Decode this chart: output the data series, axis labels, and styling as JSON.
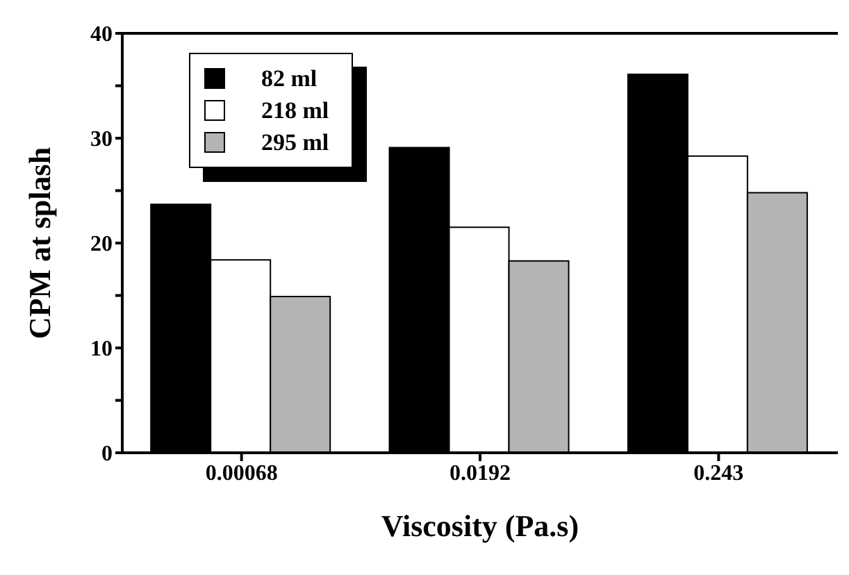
{
  "chart_data": {
    "type": "bar",
    "xlabel": "Viscosity (Pa.s)",
    "ylabel": "CPM at splash",
    "categories": [
      "0.00068",
      "0.0192",
      "0.243"
    ],
    "series": [
      {
        "name": "82 ml",
        "color": "#000000",
        "values": [
          23.7,
          29.1,
          36.1
        ]
      },
      {
        "name": "218 ml",
        "color": "#ffffff",
        "values": [
          18.4,
          21.5,
          28.3
        ]
      },
      {
        "name": "295 ml",
        "color": "#b4b4b4",
        "values": [
          14.9,
          18.3,
          24.8
        ]
      }
    ],
    "ylim": [
      0,
      40
    ],
    "yticks": [
      0,
      {
        "value": 5,
        "label": null
      },
      10,
      {
        "value": 15,
        "label": null
      },
      20,
      {
        "value": 25,
        "label": null
      },
      30,
      {
        "value": 35,
        "label": null
      },
      40
    ],
    "grid": false,
    "legend": "top left"
  }
}
